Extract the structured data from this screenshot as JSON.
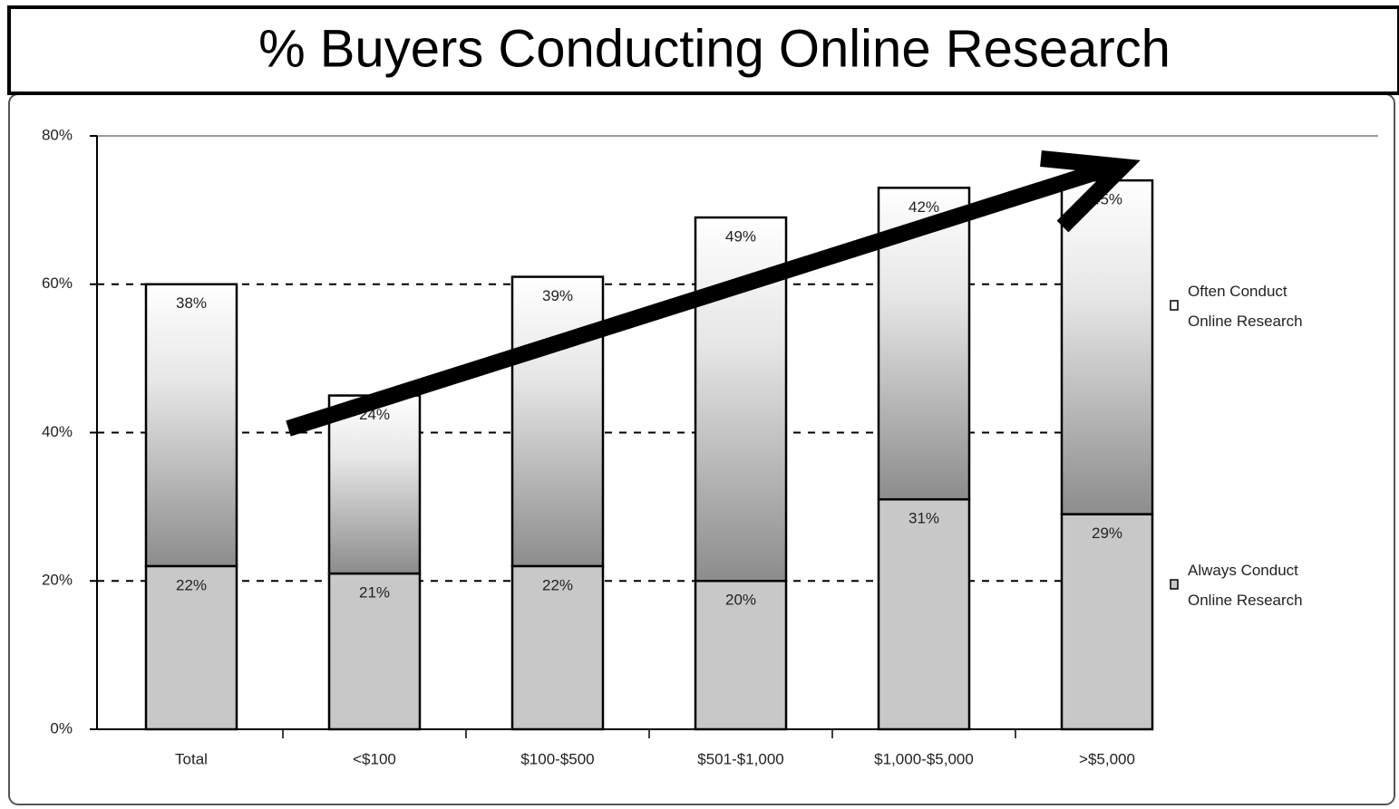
{
  "chart_data": {
    "type": "stacked_bar",
    "title": "% Buyers Conducting Online Research",
    "categories": [
      "Total",
      "<$100",
      "$100-$500",
      "$501-$1,000",
      "$1,000-$5,000",
      ">$5,000"
    ],
    "series": [
      {
        "name": "Always Conduct Online Research",
        "color": "#c8c8c8",
        "values": [
          22,
          21,
          22,
          20,
          31,
          29
        ],
        "value_labels": [
          "22%",
          "21%",
          "22%",
          "20%",
          "31%",
          "29%"
        ]
      },
      {
        "name": "Often Conduct Online Research",
        "color": "#8c8c8c",
        "values": [
          38,
          24,
          39,
          49,
          42,
          45
        ],
        "value_labels": [
          "38%",
          "24%",
          "39%",
          "49%",
          "42%",
          "45%"
        ]
      }
    ],
    "ylim": [
      0,
      80
    ],
    "yticks": [
      {
        "value": 0,
        "label": "0%"
      },
      {
        "value": 20,
        "label": "20%"
      },
      {
        "value": 40,
        "label": "40%"
      },
      {
        "value": 60,
        "label": "60%"
      },
      {
        "value": 80,
        "label": "80%"
      }
    ],
    "grid": true
  }
}
